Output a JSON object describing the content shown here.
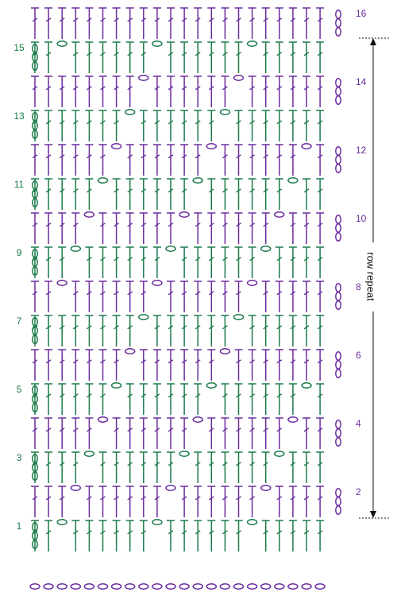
{
  "colors": {
    "odd": "#1b7a4a",
    "even": "#6b2c9e",
    "annotation": "#111111"
  },
  "chart": {
    "stitch_columns": 22,
    "row_numbers": [
      "1",
      "2",
      "3",
      "4",
      "5",
      "6",
      "7",
      "8",
      "9",
      "10",
      "11",
      "12",
      "13",
      "14",
      "15",
      "16"
    ],
    "repeat_label": "row repeat",
    "repeat_from_row": "2",
    "repeat_to_row": "15",
    "foundation": "chain",
    "chain_columns_by_row": {
      "1": [
        2,
        9,
        16
      ],
      "2": [
        3,
        10,
        17
      ],
      "3": [
        4,
        11,
        18
      ],
      "4": [
        5,
        12,
        19
      ],
      "5": [
        6,
        13,
        20
      ],
      "6": [
        7,
        14
      ],
      "7": [
        8,
        15
      ],
      "8": [
        2,
        9,
        16
      ],
      "9": [
        3,
        10,
        17
      ],
      "10": [
        4,
        11,
        18
      ],
      "11": [
        5,
        12,
        19
      ],
      "12": [
        6,
        13,
        20
      ],
      "13": [
        7,
        14
      ],
      "14": [
        8,
        15
      ],
      "15": [
        2,
        9,
        16
      ],
      "16": []
    }
  }
}
